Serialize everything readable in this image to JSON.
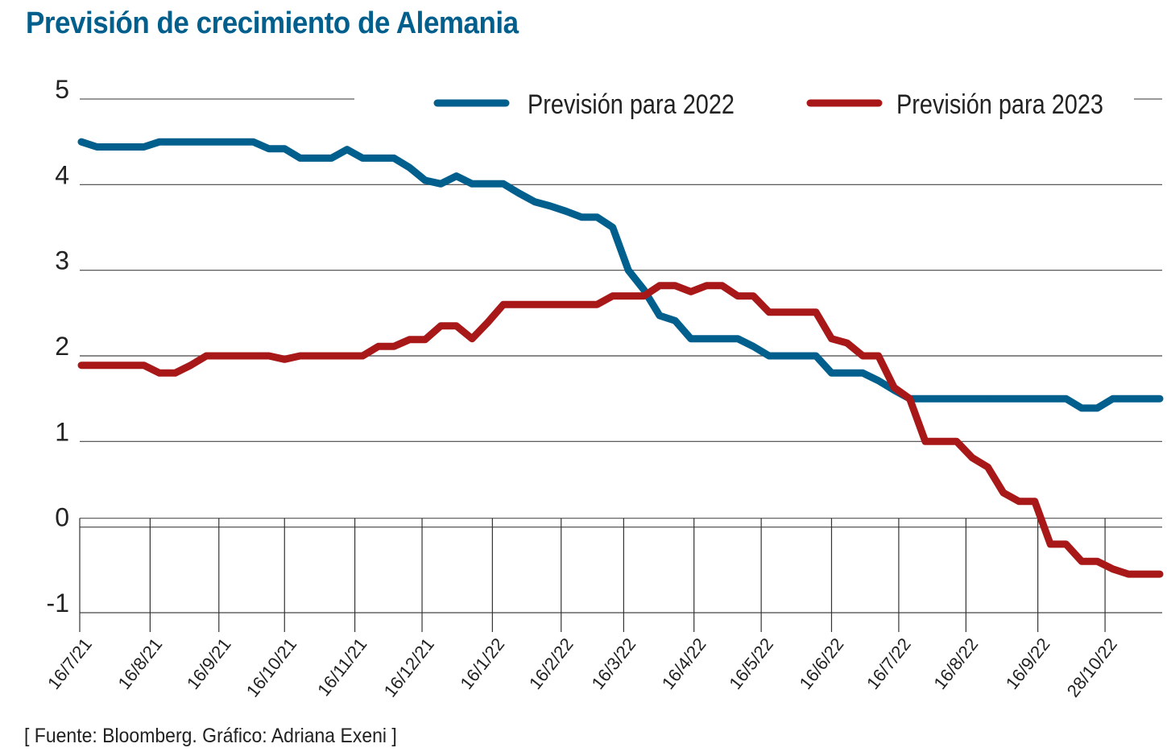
{
  "title": "Previsión de crecimiento de Alemania",
  "source": "[ Fuente: Bloomberg. Gráfico: Adriana Exeni ]",
  "colors": {
    "title": "#005f8c",
    "series_2022": "#005f8c",
    "series_2023": "#a81818"
  },
  "chart_data": {
    "type": "line",
    "title": "Previsión de crecimiento de Alemania",
    "xlabel": "",
    "ylabel": "",
    "ylim": [
      -1,
      5
    ],
    "yticks": [
      5,
      4,
      3,
      2,
      1,
      0,
      -1
    ],
    "grid": true,
    "legend_position": "top-right",
    "x_count": 70,
    "xticks": [
      {
        "label": "16/7/21",
        "index": 0
      },
      {
        "label": "16/8/21",
        "index": 4.4
      },
      {
        "label": "16/9/21",
        "index": 8.8
      },
      {
        "label": "16/10/21",
        "index": 13.0
      },
      {
        "label": "16/11/21",
        "index": 17.5
      },
      {
        "label": "16/12/21",
        "index": 21.8
      },
      {
        "label": "16/1/22",
        "index": 26.3
      },
      {
        "label": "16/2/22",
        "index": 30.7
      },
      {
        "label": "16/3/22",
        "index": 34.7
      },
      {
        "label": "16/4/22",
        "index": 39.2
      },
      {
        "label": "16/5/22",
        "index": 43.5
      },
      {
        "label": "16/6/22",
        "index": 48.0
      },
      {
        "label": "16/7/22",
        "index": 52.3
      },
      {
        "label": "16/8/22",
        "index": 56.6
      },
      {
        "label": "16/9/22",
        "index": 61.2
      },
      {
        "label": "28/10/22",
        "index": 65.5
      }
    ],
    "series": [
      {
        "name": "Previsión para 2022",
        "color": "#005f8c",
        "values": [
          4.5,
          4.44,
          4.44,
          4.44,
          4.44,
          4.5,
          4.5,
          4.5,
          4.5,
          4.5,
          4.5,
          4.5,
          4.42,
          4.42,
          4.31,
          4.31,
          4.31,
          4.41,
          4.31,
          4.31,
          4.31,
          4.2,
          4.05,
          4.01,
          4.1,
          4.01,
          4.01,
          4.01,
          3.9,
          3.8,
          3.75,
          3.69,
          3.62,
          3.62,
          3.5,
          3.0,
          2.77,
          2.47,
          2.41,
          2.2,
          2.2,
          2.2,
          2.2,
          2.11,
          2.0,
          2.0,
          2.0,
          2.0,
          1.8,
          1.8,
          1.8,
          1.71,
          1.6,
          1.5,
          1.5,
          1.5,
          1.5,
          1.5,
          1.5,
          1.5,
          1.5,
          1.5,
          1.5,
          1.5,
          1.39,
          1.39,
          1.5,
          1.5,
          1.5,
          1.5
        ]
      },
      {
        "name": "Previsión para 2023",
        "color": "#a81818",
        "values": [
          1.89,
          1.89,
          1.89,
          1.89,
          1.89,
          1.8,
          1.8,
          1.89,
          2.0,
          2.0,
          2.0,
          2.0,
          2.0,
          1.96,
          2.0,
          2.0,
          2.0,
          2.0,
          2.0,
          2.11,
          2.11,
          2.19,
          2.19,
          2.35,
          2.35,
          2.2,
          2.39,
          2.6,
          2.6,
          2.6,
          2.6,
          2.6,
          2.6,
          2.6,
          2.7,
          2.7,
          2.7,
          2.82,
          2.82,
          2.75,
          2.82,
          2.82,
          2.7,
          2.7,
          2.51,
          2.51,
          2.51,
          2.51,
          2.2,
          2.15,
          2.0,
          2.0,
          1.63,
          1.5,
          1.0,
          1.0,
          1.0,
          0.81,
          0.7,
          0.4,
          0.3,
          0.3,
          -0.2,
          -0.2,
          -0.4,
          -0.4,
          -0.49,
          -0.55,
          -0.55,
          -0.55
        ]
      }
    ]
  }
}
